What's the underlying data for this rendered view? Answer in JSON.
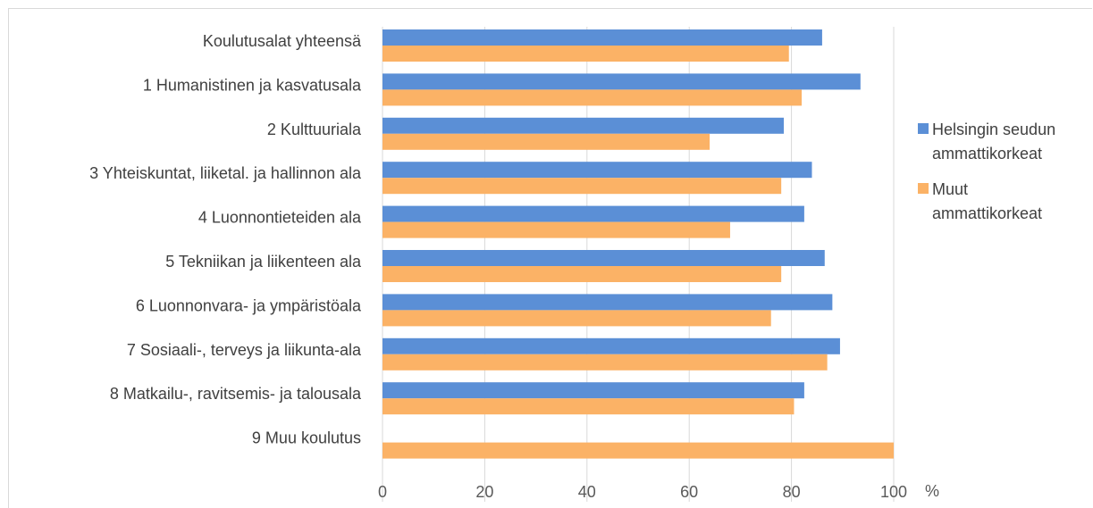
{
  "chart_data": {
    "type": "bar",
    "orientation": "horizontal",
    "categories": [
      "Koulutusalat yhteensä",
      "1 Humanistinen ja kasvatusala",
      "2 Kulttuuriala",
      "3 Yhteiskuntat, liiketal. ja hallinnon ala",
      "4 Luonnontieteiden ala",
      "5 Tekniikan ja liikenteen ala",
      "6 Luonnonvara- ja ympäristöala",
      "7 Sosiaali-, terveys ja liikunta-ala",
      "8 Matkailu-, ravitsemis- ja talousala",
      "9 Muu koulutus"
    ],
    "series": [
      {
        "name": "Helsingin seudun ammattikorkeat",
        "name_lines": [
          "Helsingin seudun",
          "ammattikorkeat"
        ],
        "color": "#5b8fd6",
        "values": [
          86,
          93.5,
          78.5,
          84,
          82.5,
          86.5,
          88,
          89.5,
          82.5,
          null
        ]
      },
      {
        "name": "Muut ammattikorkeat",
        "name_lines": [
          "Muut",
          "ammattikorkeat"
        ],
        "color": "#fbb266",
        "values": [
          79.5,
          82,
          64,
          78,
          68,
          78,
          76,
          87,
          80.5,
          100
        ]
      }
    ],
    "xlim": [
      0,
      100
    ],
    "xticks": [
      "0",
      "20",
      "40",
      "60",
      "80",
      "100"
    ],
    "xunit": "%",
    "grid": true,
    "legend_position": "right"
  }
}
